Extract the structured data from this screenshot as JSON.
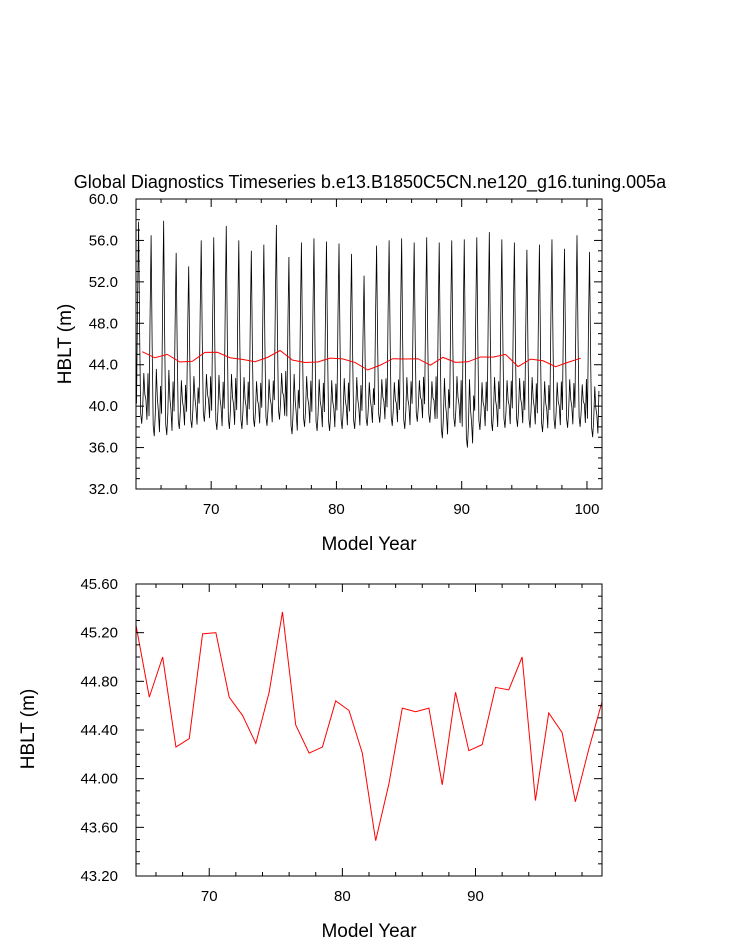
{
  "title": "Global Diagnostics Timeseries b.e13.B1850C5CN.ne120_g16.tuning.005a",
  "colors": {
    "monthly": "#000000",
    "annual": "#ff0000",
    "frame": "#000000"
  },
  "chart_data": [
    {
      "type": "line",
      "name": "monthly-and-annual-timeseries",
      "xlabel": "Model Year",
      "ylabel": "HBLT (m)",
      "xlim": [
        64.0,
        101.2
      ],
      "ylim": [
        32.0,
        60.0
      ],
      "xticks": [
        70,
        80,
        90,
        100
      ],
      "yticks": [
        32.0,
        36.0,
        40.0,
        44.0,
        48.0,
        52.0,
        56.0,
        60.0
      ],
      "ytick_labels": [
        "32.0",
        "36.0",
        "40.0",
        "44.0",
        "48.0",
        "52.0",
        "56.0",
        "60.0"
      ],
      "series": [
        {
          "name": "monthly",
          "color": "#000000",
          "x_start": 64.04,
          "x_step": 0.08333,
          "annual_max": [
            57.8,
            56.5,
            57.9,
            54.8,
            53.5,
            56.0,
            56.3,
            57.4,
            56.0,
            55.0,
            55.6,
            57.5,
            54.4,
            55.8,
            56.2,
            55.9,
            55.7,
            54.7,
            52.6,
            55.5,
            56.0,
            56.2,
            55.8,
            56.3,
            55.8,
            56.0,
            56.1,
            56.3,
            56.8,
            56.1,
            55.8,
            55.1,
            55.6,
            56.1,
            55.2,
            56.5,
            54.9
          ],
          "annual_min": [
            38.3,
            37.1,
            37.2,
            37.8,
            37.9,
            38.5,
            37.7,
            37.8,
            37.8,
            38.0,
            38.1,
            38.7,
            37.3,
            38.0,
            37.6,
            37.6,
            37.8,
            37.8,
            38.1,
            38.4,
            38.1,
            37.8,
            38.5,
            38.4,
            36.9,
            38.0,
            36.0,
            37.7,
            37.6,
            37.9,
            38.0,
            37.9,
            37.5,
            37.8,
            37.9,
            38.0,
            37.0
          ],
          "annual_secondary": [
            43.2,
            43.6,
            43.5,
            42.5,
            42.9,
            43.1,
            43.0,
            43.1,
            42.8,
            42.4,
            42.6,
            43.2,
            43.1,
            42.9,
            42.6,
            42.5,
            42.7,
            42.8,
            42.3,
            42.6,
            42.3,
            42.8,
            42.5,
            42.4,
            42.7,
            42.9,
            42.6,
            42.3,
            42.8,
            42.5,
            42.7,
            42.8,
            42.4,
            42.3,
            42.6,
            42.1,
            41.9
          ]
        },
        {
          "name": "annual-mean",
          "color": "#ff0000",
          "x": [
            64.5,
            65.5,
            66.5,
            67.5,
            68.5,
            69.5,
            70.5,
            71.5,
            72.5,
            73.5,
            74.5,
            75.5,
            76.5,
            77.5,
            78.5,
            79.5,
            80.5,
            81.5,
            82.5,
            83.5,
            84.5,
            85.5,
            86.5,
            87.5,
            88.5,
            89.5,
            90.5,
            91.5,
            92.5,
            93.5,
            94.5,
            95.5,
            96.5,
            97.5,
            98.5,
            99.5
          ],
          "values": [
            45.26,
            44.67,
            45.0,
            44.26,
            44.33,
            45.19,
            45.2,
            44.67,
            44.52,
            44.29,
            44.71,
            45.37,
            44.44,
            44.21,
            44.26,
            44.64,
            44.56,
            44.21,
            43.49,
            43.96,
            44.58,
            44.55,
            44.58,
            43.95,
            44.71,
            44.23,
            44.28,
            44.75,
            44.73,
            45.0,
            43.82,
            44.54,
            44.38,
            43.81,
            44.24,
            44.63
          ]
        }
      ]
    },
    {
      "type": "line",
      "name": "annual-mean-timeseries",
      "xlabel": "Model Year",
      "ylabel": "HBLT (m)",
      "xlim": [
        64.5,
        99.5
      ],
      "ylim": [
        43.2,
        45.6
      ],
      "xticks": [
        70,
        80,
        90
      ],
      "yticks": [
        43.2,
        43.6,
        44.0,
        44.4,
        44.8,
        45.2,
        45.6
      ],
      "ytick_labels": [
        "43.20",
        "43.60",
        "44.00",
        "44.40",
        "44.80",
        "45.20",
        "45.60"
      ],
      "series": [
        {
          "name": "annual-mean",
          "color": "#ff0000",
          "x": [
            64.5,
            65.5,
            66.5,
            67.5,
            68.5,
            69.5,
            70.5,
            71.5,
            72.5,
            73.5,
            74.5,
            75.5,
            76.5,
            77.5,
            78.5,
            79.5,
            80.5,
            81.5,
            82.5,
            83.5,
            84.5,
            85.5,
            86.5,
            87.5,
            88.5,
            89.5,
            90.5,
            91.5,
            92.5,
            93.5,
            94.5,
            95.5,
            96.5,
            97.5,
            98.5,
            99.5
          ],
          "values": [
            45.26,
            44.67,
            45.0,
            44.26,
            44.33,
            45.19,
            45.2,
            44.67,
            44.52,
            44.29,
            44.71,
            45.37,
            44.44,
            44.21,
            44.26,
            44.64,
            44.56,
            44.21,
            43.49,
            43.96,
            44.58,
            44.55,
            44.58,
            43.95,
            44.71,
            44.23,
            44.28,
            44.75,
            44.73,
            45.0,
            43.82,
            44.54,
            44.38,
            43.81,
            44.24,
            44.63
          ]
        }
      ]
    }
  ]
}
